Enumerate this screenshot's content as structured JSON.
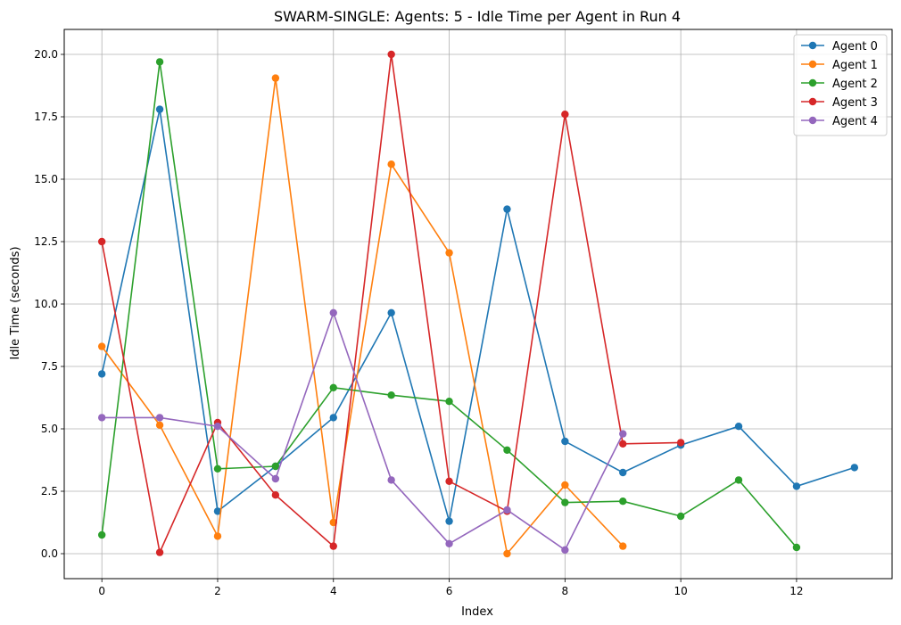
{
  "chart_data": {
    "type": "line",
    "title": "SWARM-SINGLE: Agents: 5 - Idle Time per Agent in Run 4",
    "xlabel": "Index",
    "ylabel": "Idle Time (seconds)",
    "xlim": [
      -0.65,
      13.65
    ],
    "ylim": [
      -1.0,
      21.0
    ],
    "xticks": [
      0,
      2,
      4,
      6,
      8,
      10,
      12
    ],
    "yticks": [
      0.0,
      2.5,
      5.0,
      7.5,
      10.0,
      12.5,
      15.0,
      17.5,
      20.0
    ],
    "xtick_labels": [
      "0",
      "2",
      "4",
      "6",
      "8",
      "10",
      "12"
    ],
    "ytick_labels": [
      "0.0",
      "2.5",
      "5.0",
      "7.5",
      "10.0",
      "12.5",
      "15.0",
      "17.5",
      "20.0"
    ],
    "grid": true,
    "legend_position": "top-right",
    "series": [
      {
        "name": "Agent 0",
        "color": "#1f77b4",
        "x": [
          0,
          1,
          2,
          3,
          4,
          5,
          6,
          7,
          8,
          9,
          10,
          11,
          12,
          13
        ],
        "values": [
          7.2,
          17.8,
          1.7,
          3.5,
          5.45,
          9.65,
          1.3,
          13.8,
          4.5,
          3.25,
          4.35,
          5.1,
          2.7,
          3.45
        ]
      },
      {
        "name": "Agent 1",
        "color": "#ff7f0e",
        "x": [
          0,
          1,
          2,
          3,
          4,
          5,
          6,
          7,
          8,
          9
        ],
        "values": [
          8.3,
          5.15,
          0.7,
          19.05,
          1.25,
          15.6,
          12.05,
          0.0,
          2.75,
          0.3
        ]
      },
      {
        "name": "Agent 2",
        "color": "#2ca02c",
        "x": [
          0,
          1,
          2,
          3,
          4,
          5,
          6,
          7,
          8,
          9,
          10,
          11,
          12
        ],
        "values": [
          0.75,
          19.7,
          3.4,
          3.5,
          6.65,
          6.35,
          6.1,
          4.15,
          2.05,
          2.1,
          1.5,
          2.95,
          0.25
        ]
      },
      {
        "name": "Agent 3",
        "color": "#d62728",
        "x": [
          0,
          1,
          2,
          3,
          4,
          5,
          6,
          7,
          8,
          9,
          10
        ],
        "values": [
          12.5,
          0.05,
          5.25,
          2.35,
          0.3,
          20.0,
          2.9,
          1.7,
          17.6,
          4.4,
          4.45
        ]
      },
      {
        "name": "Agent 4",
        "color": "#9467bd",
        "x": [
          0,
          1,
          2,
          3,
          4,
          5,
          6,
          7,
          8,
          9
        ],
        "values": [
          5.45,
          5.45,
          5.1,
          3.0,
          9.65,
          2.95,
          0.4,
          1.75,
          0.15,
          4.8
        ]
      }
    ]
  }
}
